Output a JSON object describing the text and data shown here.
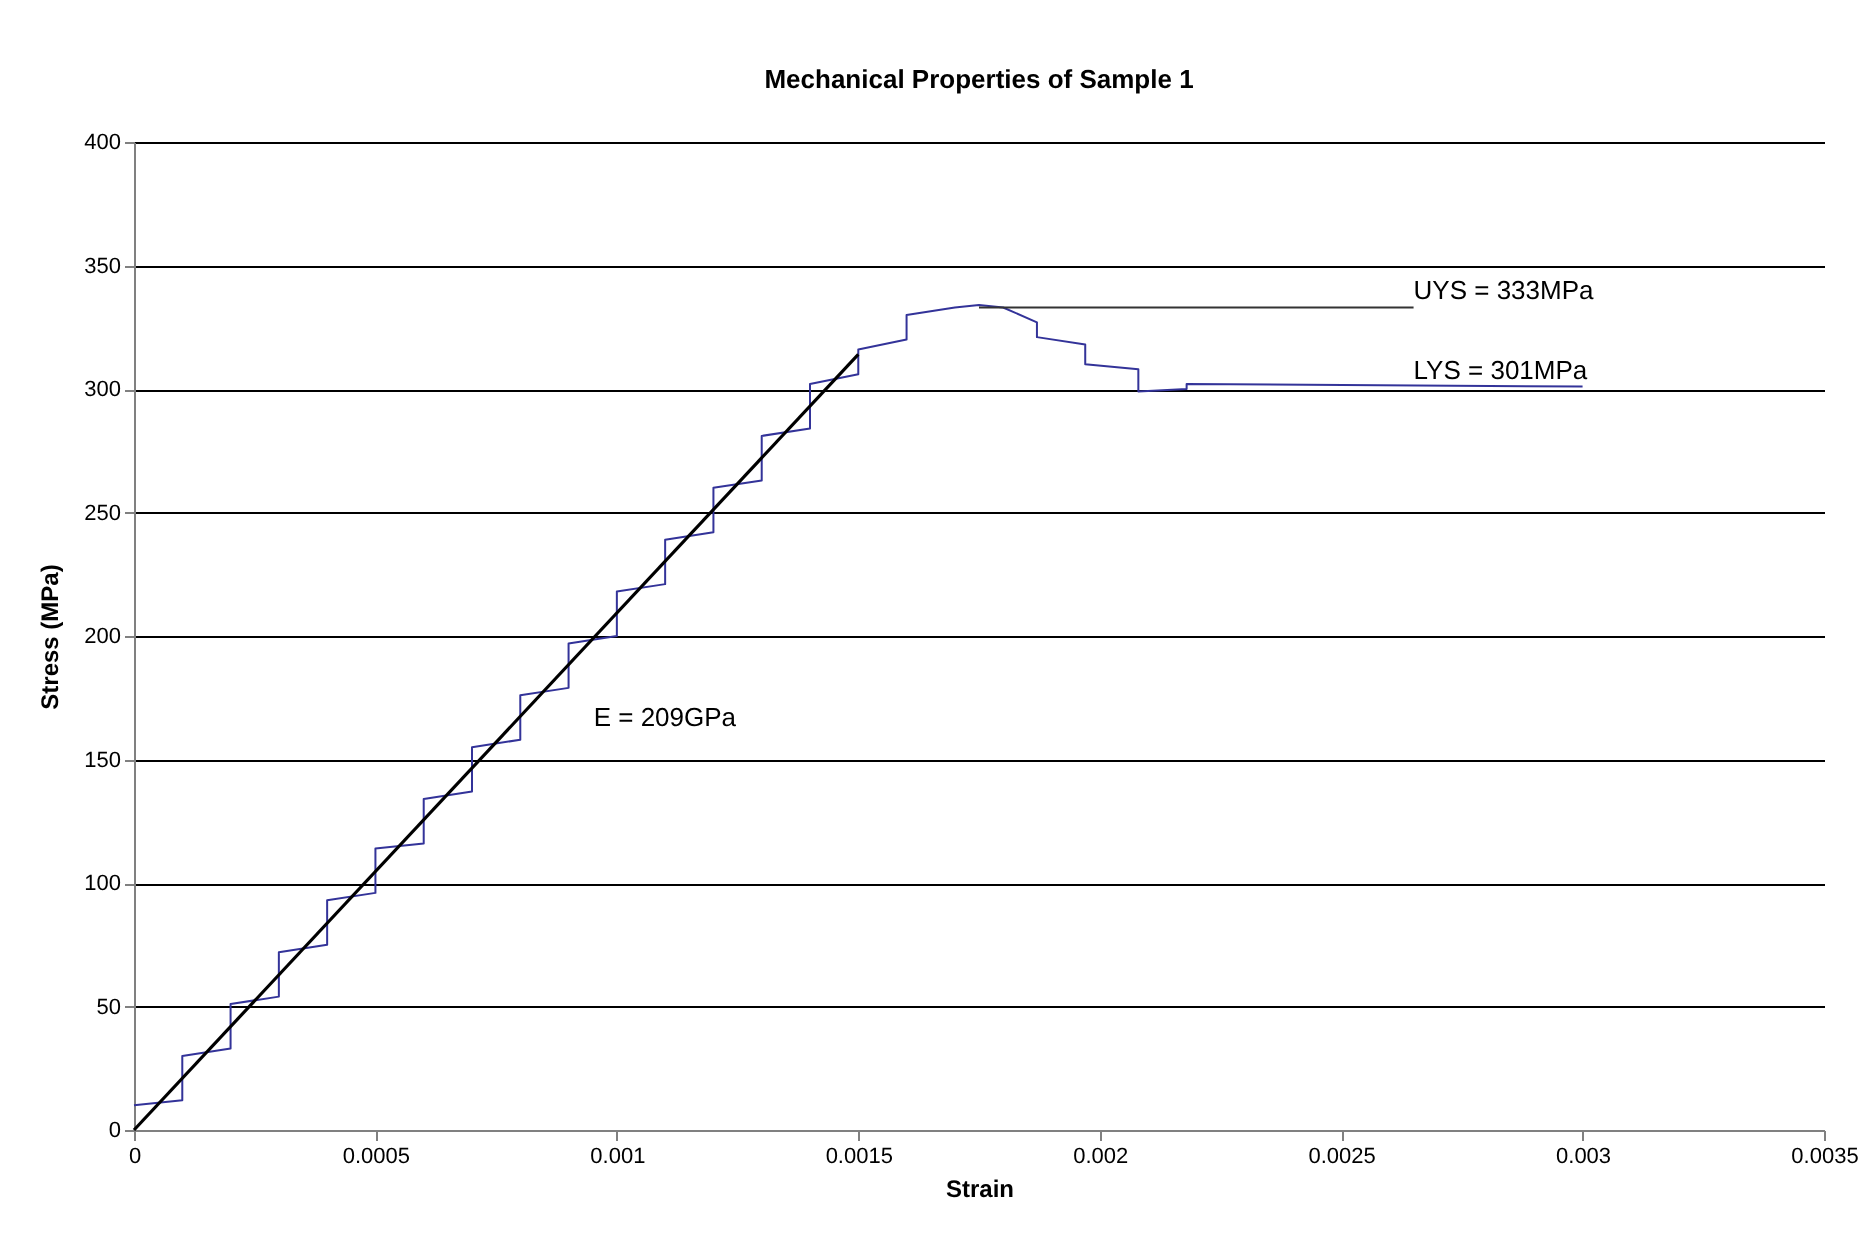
{
  "chart_data": {
    "type": "line",
    "title": "Mechanical Properties of Sample 1",
    "xlabel": "Strain",
    "ylabel": "Stress (MPa)",
    "xlim": [
      0,
      0.0035
    ],
    "xticks": [
      0,
      0.0005,
      0.001,
      0.0015,
      0.002,
      0.0025,
      0.003,
      0.0035
    ],
    "ylim": [
      0,
      400
    ],
    "yticks": [
      0,
      50,
      100,
      150,
      200,
      250,
      300,
      350,
      400
    ],
    "grid": "y",
    "marker": "none",
    "line_style": "solid",
    "series": [
      {
        "color": "#333399",
        "x": [
          0,
          0.0001,
          0.0001,
          0.0002,
          0.0002,
          0.0003,
          0.0003,
          0.0004,
          0.0004,
          0.0005,
          0.0005,
          0.0006,
          0.0006,
          0.0007,
          0.0007,
          0.0008,
          0.0008,
          0.0009,
          0.0009,
          0.001,
          0.001,
          0.0011,
          0.0011,
          0.0012,
          0.0012,
          0.0013,
          0.0013,
          0.0014,
          0.0014,
          0.0015,
          0.0015,
          0.0016,
          0.0016,
          0.0017,
          0.00175,
          0.0018,
          0.00187,
          0.00187,
          0.00197,
          0.00197,
          0.00208,
          0.00208,
          0.00218,
          0.00218,
          0.003
        ],
        "values": [
          10,
          12,
          30,
          33,
          51,
          54,
          72,
          75,
          93,
          96,
          114,
          116,
          134,
          137,
          155,
          158,
          176,
          179,
          197,
          200,
          218,
          221,
          239,
          242,
          260,
          263,
          281,
          284,
          302,
          306,
          316,
          320,
          330,
          333,
          334,
          333,
          327,
          321,
          318,
          310,
          308,
          299,
          300,
          302,
          301
        ]
      },
      {
        "color": "#000000",
        "x": [
          0,
          0.0015
        ],
        "values": [
          0,
          314
        ]
      },
      {
        "color": "#333333",
        "x": [
          0.00175,
          0.00265
        ],
        "values": [
          333,
          333
        ]
      }
    ],
    "annotations": [
      {
        "text": "UYS = 333MPa",
        "x": 0.00265,
        "y": 333
      },
      {
        "text": "LYS = 301MPa",
        "x": 0.00265,
        "y": 301
      },
      "E = 209GPa"
    ]
  }
}
